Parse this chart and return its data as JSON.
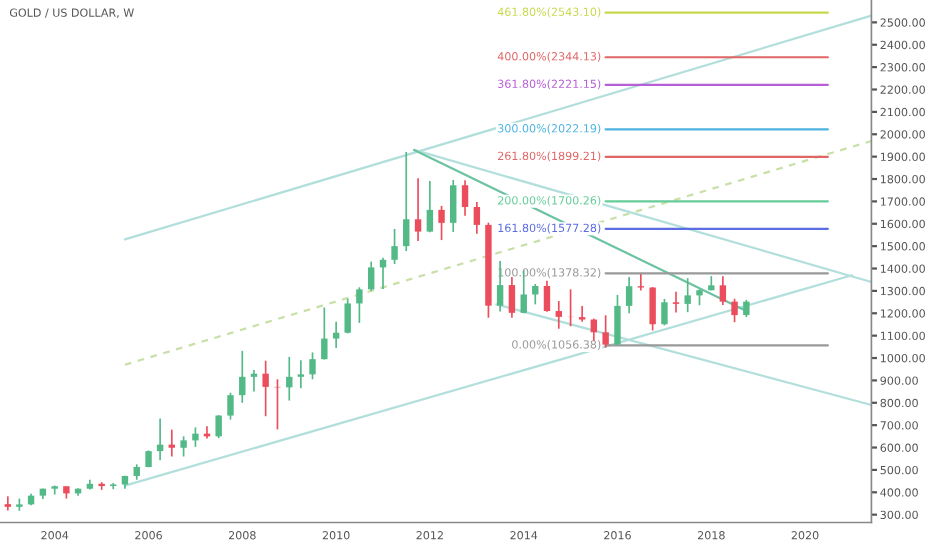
{
  "chart_data": {
    "type": "candlestick",
    "title": "GOLD / US DOLLAR, W",
    "x": [
      "2003-01",
      "2003-04",
      "2003-07",
      "2003-10",
      "2004-01",
      "2004-04",
      "2004-07",
      "2004-10",
      "2005-01",
      "2005-04",
      "2005-07",
      "2005-10",
      "2006-01",
      "2006-04",
      "2006-07",
      "2006-10",
      "2007-01",
      "2007-04",
      "2007-07",
      "2007-10",
      "2008-01",
      "2008-04",
      "2008-07",
      "2008-10",
      "2009-01",
      "2009-04",
      "2009-07",
      "2009-10",
      "2010-01",
      "2010-04",
      "2010-07",
      "2010-10",
      "2011-01",
      "2011-04",
      "2011-07",
      "2011-10",
      "2012-01",
      "2012-04",
      "2012-07",
      "2012-10",
      "2013-01",
      "2013-04",
      "2013-07",
      "2013-10",
      "2014-01",
      "2014-04",
      "2014-07",
      "2014-10",
      "2015-01",
      "2015-04",
      "2015-07",
      "2015-10",
      "2016-01",
      "2016-04",
      "2016-07",
      "2016-10",
      "2017-01",
      "2017-04",
      "2017-07",
      "2017-10",
      "2018-01",
      "2018-04",
      "2018-07",
      "2018-10"
    ],
    "ohlc": [
      [
        347,
        382,
        319,
        335
      ],
      [
        335,
        372,
        318,
        346
      ],
      [
        346,
        394,
        342,
        385
      ],
      [
        385,
        417,
        370,
        416
      ],
      [
        416,
        430,
        390,
        427
      ],
      [
        427,
        427,
        372,
        395
      ],
      [
        395,
        418,
        384,
        416
      ],
      [
        416,
        456,
        412,
        438
      ],
      [
        438,
        445,
        411,
        428
      ],
      [
        428,
        441,
        414,
        435
      ],
      [
        435,
        474,
        416,
        473
      ],
      [
        473,
        525,
        456,
        513
      ],
      [
        513,
        587,
        512,
        584
      ],
      [
        584,
        730,
        543,
        613
      ],
      [
        613,
        680,
        560,
        599
      ],
      [
        599,
        650,
        560,
        632
      ],
      [
        632,
        690,
        603,
        662
      ],
      [
        662,
        695,
        640,
        650
      ],
      [
        650,
        745,
        642,
        743
      ],
      [
        743,
        845,
        725,
        834
      ],
      [
        834,
        1032,
        800,
        916
      ],
      [
        916,
        946,
        850,
        930
      ],
      [
        930,
        988,
        740,
        871
      ],
      [
        871,
        905,
        681,
        869
      ],
      [
        869,
        1005,
        810,
        916
      ],
      [
        916,
        990,
        865,
        927
      ],
      [
        927,
        1025,
        905,
        995
      ],
      [
        995,
        1226,
        993,
        1087
      ],
      [
        1087,
        1162,
        1045,
        1113
      ],
      [
        1113,
        1265,
        1110,
        1244
      ],
      [
        1244,
        1316,
        1157,
        1307
      ],
      [
        1307,
        1431,
        1300,
        1405
      ],
      [
        1405,
        1448,
        1308,
        1439
      ],
      [
        1439,
        1577,
        1420,
        1500
      ],
      [
        1500,
        1921,
        1478,
        1620
      ],
      [
        1620,
        1803,
        1523,
        1565
      ],
      [
        1565,
        1791,
        1562,
        1662
      ],
      [
        1662,
        1680,
        1527,
        1604
      ],
      [
        1604,
        1796,
        1563,
        1772
      ],
      [
        1772,
        1795,
        1636,
        1675
      ],
      [
        1675,
        1697,
        1555,
        1595
      ],
      [
        1595,
        1605,
        1180,
        1234
      ],
      [
        1234,
        1434,
        1208,
        1326
      ],
      [
        1326,
        1362,
        1180,
        1202
      ],
      [
        1202,
        1392,
        1200,
        1284
      ],
      [
        1284,
        1331,
        1240,
        1322
      ],
      [
        1322,
        1345,
        1207,
        1210
      ],
      [
        1210,
        1255,
        1131,
        1184
      ],
      [
        1184,
        1307,
        1142,
        1183
      ],
      [
        1183,
        1232,
        1162,
        1172
      ],
      [
        1172,
        1176,
        1077,
        1115
      ],
      [
        1115,
        1191,
        1046,
        1060
      ],
      [
        1060,
        1282,
        1058,
        1233
      ],
      [
        1233,
        1362,
        1200,
        1321
      ],
      [
        1321,
        1375,
        1302,
        1315
      ],
      [
        1315,
        1317,
        1123,
        1151
      ],
      [
        1151,
        1264,
        1146,
        1249
      ],
      [
        1249,
        1296,
        1204,
        1242
      ],
      [
        1242,
        1357,
        1205,
        1280
      ],
      [
        1280,
        1307,
        1236,
        1303
      ],
      [
        1303,
        1366,
        1302,
        1325
      ],
      [
        1325,
        1365,
        1237,
        1252
      ],
      [
        1252,
        1265,
        1160,
        1192
      ],
      [
        1192,
        1260,
        1183,
        1252
      ]
    ],
    "colors": [
      "#eb4d5c",
      "#53b987",
      "#53b987",
      "#53b987",
      "#53b987",
      "#eb4d5c",
      "#53b987",
      "#53b987",
      "#eb4d5c",
      "#53b987",
      "#53b987",
      "#53b987",
      "#53b987",
      "#53b987",
      "#eb4d5c",
      "#53b987",
      "#53b987",
      "#eb4d5c",
      "#53b987",
      "#53b987",
      "#53b987",
      "#53b987",
      "#eb4d5c",
      "#eb4d5c",
      "#53b987",
      "#53b987",
      "#53b987",
      "#53b987",
      "#53b987",
      "#53b987",
      "#53b987",
      "#53b987",
      "#53b987",
      "#53b987",
      "#53b987",
      "#eb4d5c",
      "#53b987",
      "#eb4d5c",
      "#53b987",
      "#eb4d5c",
      "#eb4d5c",
      "#eb4d5c",
      "#53b987",
      "#eb4d5c",
      "#53b987",
      "#53b987",
      "#eb4d5c",
      "#eb4d5c",
      "#eb4d5c",
      "#eb4d5c",
      "#eb4d5c",
      "#eb4d5c",
      "#53b987",
      "#53b987",
      "#eb4d5c",
      "#eb4d5c",
      "#53b987",
      "#eb4d5c",
      "#53b987",
      "#53b987",
      "#53b987",
      "#eb4d5c",
      "#eb4d5c",
      "#53b987"
    ],
    "series": [
      {
        "type": "line",
        "x": [
          "2005-07",
          "2021-06"
        ],
        "values": [
          1530,
          2530
        ],
        "color": "#b2dfdb",
        "line_style": "solid"
      },
      {
        "type": "line",
        "x": [
          "2005-07",
          "2021-06"
        ],
        "values": [
          970,
          1970
        ],
        "color": "#c8e0a8",
        "line_style": "dashed"
      },
      {
        "type": "line",
        "x": [
          "2005-07",
          "2021-01"
        ],
        "values": [
          430,
          1370
        ],
        "color": "#b2dfdb",
        "line_style": "solid"
      },
      {
        "type": "line",
        "x": [
          "2011-09",
          "2021-06"
        ],
        "values": [
          1930,
          1340
        ],
        "color": "#b2dfdb",
        "line_style": "solid"
      },
      {
        "type": "line",
        "x": [
          "2013-06",
          "2021-06"
        ],
        "values": [
          1240,
          790
        ],
        "color": "#b2dfdb",
        "line_style": "solid"
      },
      {
        "type": "line",
        "x": [
          "2011-09",
          "2018-10"
        ],
        "values": [
          1930,
          1210
        ],
        "color": "#6cc3a0",
        "line_style": "solid"
      }
    ],
    "ref_lines": [
      {
        "axis": "y",
        "value": 1056.38,
        "label": "0.00%(1056.38)",
        "color": "#999999"
      },
      {
        "axis": "y",
        "value": 1378.32,
        "label": "100.00%(1378.32)",
        "color": "#999999"
      },
      {
        "axis": "y",
        "value": 1577.28,
        "label": "161.80%(1577.28)",
        "color": "#5b6ee1"
      },
      {
        "axis": "y",
        "value": 1700.26,
        "label": "200.00%(1700.26)",
        "color": "#66cc99"
      },
      {
        "axis": "y",
        "value": 1899.21,
        "label": "261.80%(1899.21)",
        "color": "#e06666"
      },
      {
        "axis": "y",
        "value": 2022.19,
        "label": "300.00%(2022.19)",
        "color": "#4fb3e0"
      },
      {
        "axis": "y",
        "value": 2221.15,
        "label": "361.80%(2221.15)",
        "color": "#b65fd6"
      },
      {
        "axis": "y",
        "value": 2344.13,
        "label": "400.00%(2344.13)",
        "color": "#e06666"
      },
      {
        "axis": "y",
        "value": 2543.1,
        "label": "461.80%(2543.10)",
        "color": "#c6d94a"
      }
    ],
    "ylim": [
      265,
      2600
    ],
    "yticks": [
      {
        "value": 300,
        "label": "300.00"
      },
      {
        "value": 400,
        "label": "400.00"
      },
      {
        "value": 500,
        "label": "500.00"
      },
      {
        "value": 600,
        "label": "600.00"
      },
      {
        "value": 700,
        "label": "700.00"
      },
      {
        "value": 800,
        "label": "800.00"
      },
      {
        "value": 900,
        "label": "900.00"
      },
      {
        "value": 1000,
        "label": "1000.00"
      },
      {
        "value": 1100,
        "label": "1100.00"
      },
      {
        "value": 1200,
        "label": "1200.00"
      },
      {
        "value": 1300,
        "label": "1300.00"
      },
      {
        "value": 1400,
        "label": "1400.00"
      },
      {
        "value": 1500,
        "label": "1500.00"
      },
      {
        "value": 1600,
        "label": "1600.00"
      },
      {
        "value": 1700,
        "label": "1700.00"
      },
      {
        "value": 1800,
        "label": "1800.00"
      },
      {
        "value": 1900,
        "label": "1900.00"
      },
      {
        "value": 2000,
        "label": "2000.00"
      },
      {
        "value": 2100,
        "label": "2100.00"
      },
      {
        "value": 2200,
        "label": "2200.00"
      },
      {
        "value": 2300,
        "label": "2300.00"
      },
      {
        "value": 2400,
        "label": "2400.00"
      },
      {
        "value": 2500,
        "label": "2500.00"
      }
    ],
    "xlim": [
      "2002-11",
      "2021-06"
    ],
    "xticks": [
      {
        "value": "2004",
        "label": "2004"
      },
      {
        "value": "2006",
        "label": "2006"
      },
      {
        "value": "2008",
        "label": "2008"
      },
      {
        "value": "2010",
        "label": "2010"
      },
      {
        "value": "2012",
        "label": "2012"
      },
      {
        "value": "2014",
        "label": "2014"
      },
      {
        "value": "2016",
        "label": "2016"
      },
      {
        "value": "2018",
        "label": "2018"
      },
      {
        "value": "2020",
        "label": "2020"
      }
    ],
    "grid": false,
    "legend": false
  }
}
